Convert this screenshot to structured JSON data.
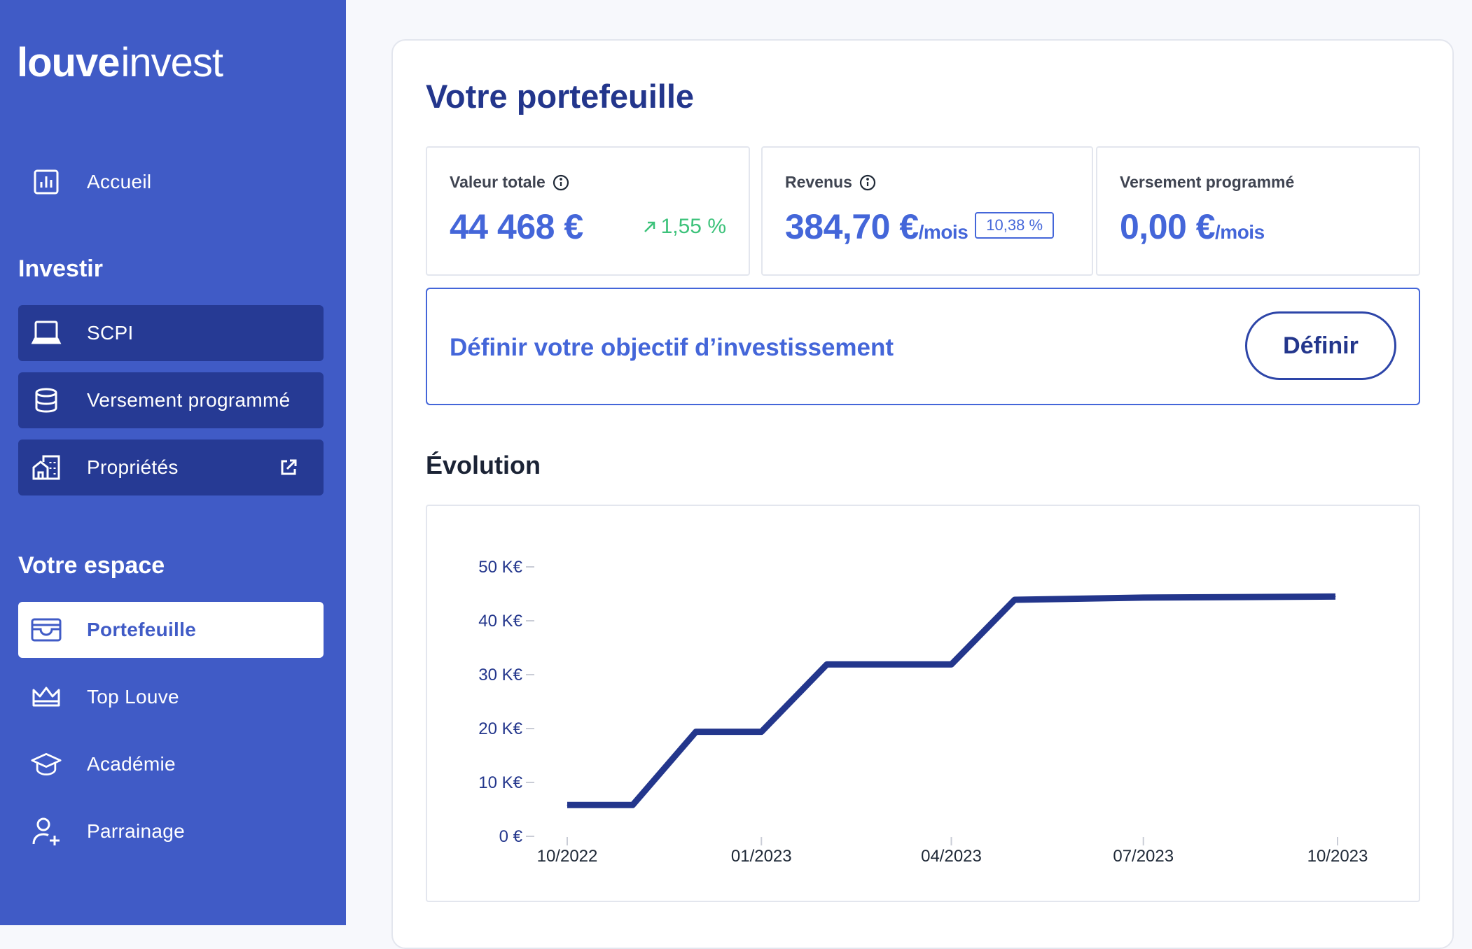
{
  "brand": {
    "logo_bold": "louve",
    "logo_light": "invest"
  },
  "sidebar": {
    "home_label": "Accueil",
    "invest_title": "Investir",
    "invest_items": [
      {
        "label": "SCPI",
        "icon": "laptop-icon"
      },
      {
        "label": "Versement programmé",
        "icon": "database-icon"
      },
      {
        "label": "Propriétés",
        "icon": "buildings-icon"
      }
    ],
    "space_title": "Votre espace",
    "space_items": [
      {
        "label": "Portefeuille",
        "icon": "wallet-icon",
        "active": true
      },
      {
        "label": "Top Louve",
        "icon": "crown-icon"
      },
      {
        "label": "Académie",
        "icon": "graduation-cap-icon"
      },
      {
        "label": "Parrainage",
        "icon": "user-plus-icon"
      }
    ]
  },
  "main": {
    "title": "Votre portefeuille",
    "stats": {
      "total": {
        "title": "Valeur totale",
        "value": "44 468 €",
        "trend": "1,55 %"
      },
      "income": {
        "title": "Revenus",
        "value": "384,70 €",
        "unit": "/mois",
        "badge": "10,38 %"
      },
      "scheduled": {
        "title": "Versement programmé",
        "value": "0,00 €",
        "unit": "/mois"
      }
    },
    "objective": {
      "text": "Définir votre objectif d’investissement",
      "button": "Définir"
    },
    "evolution_title": "Évolution"
  },
  "colors": {
    "sidebar_bg": "#405BC6",
    "sidebar_item_dark": "#263A94",
    "accent": "#4466D9",
    "title_navy": "#23368C",
    "positive_green": "#3CC27A",
    "line": "#23368C"
  },
  "chart_data": {
    "type": "line",
    "title": "Évolution",
    "xlabel": "",
    "ylabel": "",
    "ylim": [
      0,
      50
    ],
    "y_unit": "K€",
    "yticks": [
      {
        "value": 0,
        "label": "0 €"
      },
      {
        "value": 10,
        "label": "10 K€"
      },
      {
        "value": 20,
        "label": "20 K€"
      },
      {
        "value": 30,
        "label": "30 K€"
      },
      {
        "value": 40,
        "label": "40 K€"
      },
      {
        "value": 50,
        "label": "50 K€"
      }
    ],
    "xticks": [
      {
        "date": "2022-10-01",
        "label": "10/2022"
      },
      {
        "date": "2023-01-01",
        "label": "01/2023"
      },
      {
        "date": "2023-04-01",
        "label": "04/2023"
      },
      {
        "date": "2023-07-01",
        "label": "07/2023"
      },
      {
        "date": "2023-10-01",
        "label": "10/2023"
      }
    ],
    "x_range": [
      "2022-10-01",
      "2023-10-01"
    ],
    "grid": false,
    "series": [
      {
        "points": [
          {
            "x": "2022-10-01",
            "y": 5.8
          },
          {
            "x": "2022-11-01",
            "y": 5.8
          },
          {
            "x": "2022-12-01",
            "y": 19.4
          },
          {
            "x": "2023-01-01",
            "y": 19.4
          },
          {
            "x": "2023-02-01",
            "y": 31.9
          },
          {
            "x": "2023-04-01",
            "y": 31.9
          },
          {
            "x": "2023-05-01",
            "y": 43.9
          },
          {
            "x": "2023-07-01",
            "y": 44.3
          },
          {
            "x": "2023-09-30",
            "y": 44.5
          }
        ]
      }
    ]
  }
}
